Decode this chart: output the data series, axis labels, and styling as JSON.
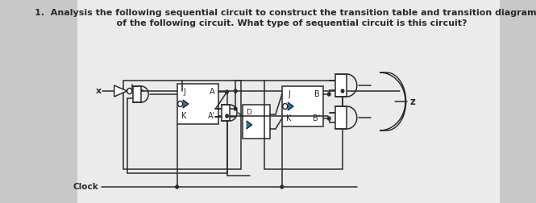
{
  "title1": "1.  Analysis the following sequential circuit to construct the transition table and transition diagram",
  "title2": "    of the following circuit. What type of sequential circuit is this circuit?",
  "bg_outer": "#c8c8c8",
  "bg_paper": "#e8e8e8",
  "lc": "#2a2a2a",
  "lw": 1.1,
  "x_label": "x",
  "z_label": "z",
  "clock_label": "Clock"
}
